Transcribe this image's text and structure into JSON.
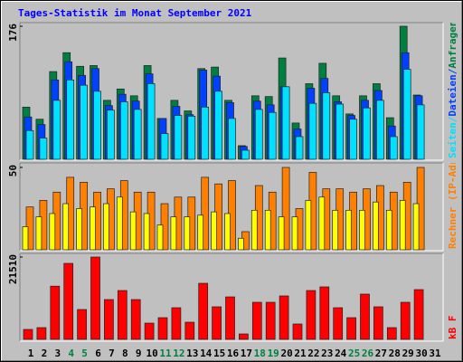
{
  "chart_data": [
    {
      "type": "bar",
      "title": "Tages-Statistik im Monat September 2021",
      "ylim": [
        0,
        176
      ],
      "yticks": [
        176
      ],
      "legend_reversed": true,
      "legend_separator": "/",
      "series": [
        {
          "name": "Anfragen",
          "color": "#008040",
          "values": [
            69,
            53,
            116,
            141,
            123,
            124,
            78,
            93,
            84,
            124,
            54,
            78,
            64,
            120,
            122,
            78,
            18,
            84,
            83,
            134,
            48,
            100,
            127,
            84,
            60,
            84,
            100,
            55,
            176,
            85,
            null
          ]
        },
        {
          "name": "Dateien",
          "color": "#0040ff",
          "values": [
            56,
            46,
            105,
            129,
            111,
            120,
            71,
            86,
            77,
            113,
            54,
            70,
            59,
            118,
            110,
            75,
            17,
            77,
            72,
            96,
            40,
            94,
            107,
            76,
            58,
            78,
            91,
            44,
            141,
            84,
            null
          ]
        },
        {
          "name": "Seiten",
          "color": "#00e0ff",
          "values": [
            38,
            28,
            78,
            105,
            98,
            90,
            65,
            76,
            66,
            100,
            34,
            58,
            57,
            69,
            90,
            54,
            12,
            66,
            62,
            96,
            30,
            74,
            88,
            73,
            53,
            68,
            78,
            30,
            119,
            72,
            null
          ]
        }
      ]
    },
    {
      "type": "bar",
      "ylim": [
        0,
        50
      ],
      "yticks": [
        50
      ],
      "legend_reversed": false,
      "legend_separator": "/",
      "series": [
        {
          "name": "Rechner (IP-Adressen)",
          "color": "#ff8000",
          "values": [
            26,
            30,
            35,
            44,
            41,
            35,
            37,
            42,
            35,
            35,
            28,
            32,
            32,
            44,
            40,
            42,
            11,
            39,
            35,
            50,
            25,
            47,
            37,
            37,
            35,
            37,
            39,
            35,
            41,
            50,
            null
          ]
        },
        {
          "name": "Besuche",
          "color": "#ffff00",
          "values": [
            14,
            20,
            22,
            28,
            25,
            26,
            28,
            32,
            23,
            22,
            15,
            20,
            20,
            21,
            23,
            22,
            7,
            24,
            24,
            20,
            20,
            30,
            32,
            24,
            24,
            24,
            29,
            24,
            30,
            28,
            null
          ]
        }
      ]
    },
    {
      "type": "bar",
      "ylim": [
        0,
        21510
      ],
      "yticks": [
        21510
      ],
      "legend_reversed": false,
      "legend_separator": "/",
      "categories": [
        "1",
        "2",
        "3",
        "4",
        "5",
        "6",
        "7",
        "8",
        "9",
        "10",
        "11",
        "12",
        "13",
        "14",
        "15",
        "16",
        "17",
        "18",
        "19",
        "20",
        "21",
        "22",
        "23",
        "24",
        "25",
        "26",
        "27",
        "28",
        "29",
        "30",
        "31"
      ],
      "label_color": "#000000",
      "highlight_color": "#008040",
      "highlight_indices": [
        3,
        4,
        10,
        11,
        17,
        18,
        24,
        25
      ],
      "series": [
        {
          "name": "kB F",
          "color": "#ff0000",
          "values": [
            2600,
            3070,
            13900,
            19850,
            7800,
            21510,
            10400,
            12760,
            10400,
            4250,
            5670,
            8270,
            4490,
            14650,
            8510,
            11100,
            1420,
            9690,
            9690,
            11350,
            4020,
            12760,
            13710,
            8270,
            5670,
            11820,
            8510,
            3070,
            9690,
            13000,
            null
          ]
        }
      ]
    }
  ]
}
